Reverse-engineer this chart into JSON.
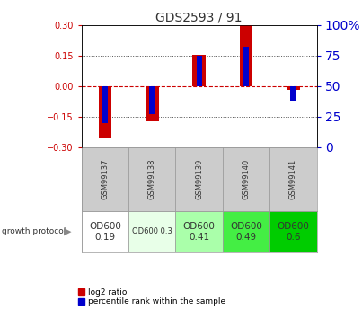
{
  "title": "GDS2593 / 91",
  "samples": [
    "GSM99137",
    "GSM99138",
    "GSM99139",
    "GSM99140",
    "GSM99141"
  ],
  "log2_ratios": [
    -0.255,
    -0.175,
    0.155,
    0.3,
    -0.02
  ],
  "percentile_ranks": [
    20,
    27,
    75,
    82,
    38
  ],
  "growth_protocol_labels": [
    "OD600\n0.19",
    "OD600 0.3",
    "OD600\n0.41",
    "OD600\n0.49",
    "OD600\n0.6"
  ],
  "growth_protocol_colors": [
    "#ffffff",
    "#e8ffe8",
    "#aaffaa",
    "#44ee44",
    "#00cc00"
  ],
  "growth_protocol_text_sizes": [
    7.5,
    6.0,
    7.5,
    7.5,
    7.5
  ],
  "ylim_left": [
    -0.3,
    0.3
  ],
  "ylim_right": [
    0,
    100
  ],
  "yticks_left": [
    -0.3,
    -0.15,
    0,
    0.15,
    0.3
  ],
  "yticks_right": [
    0,
    25,
    50,
    75,
    100
  ],
  "bar_color_red": "#cc0000",
  "bar_color_blue": "#0000cc",
  "bar_width": 0.28,
  "blue_bar_width": 0.12,
  "legend_red": "log2 ratio",
  "legend_blue": "percentile rank within the sample",
  "background_color": "#ffffff",
  "plot_bg_color": "#ffffff"
}
